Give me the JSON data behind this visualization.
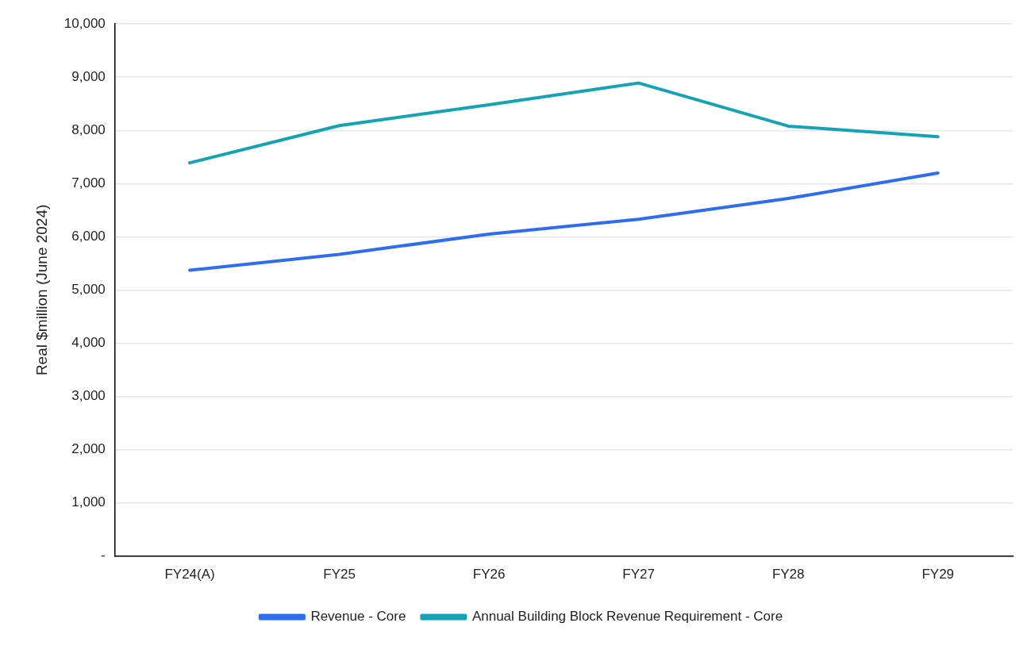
{
  "chart_data": {
    "type": "line",
    "ylabel": "Real $million (June 2024)",
    "categories": [
      "FY24(A)",
      "FY25",
      "FY26",
      "FY27",
      "FY28",
      "FY29"
    ],
    "series": [
      {
        "name": "Revenue - Core",
        "color": "#2e6cf2",
        "values": [
          5370,
          5670,
          6050,
          6330,
          6720,
          7200
        ]
      },
      {
        "name": "Annual Building Block Revenue Requirement - Core",
        "color": "#14a3b3",
        "values": [
          7390,
          8090,
          8480,
          8890,
          8080,
          7880
        ]
      }
    ],
    "ylim": [
      0,
      10000
    ],
    "yticks": [
      {
        "value": 0,
        "label": "-"
      },
      {
        "value": 1000,
        "label": "1,000"
      },
      {
        "value": 2000,
        "label": "2,000"
      },
      {
        "value": 3000,
        "label": "3,000"
      },
      {
        "value": 4000,
        "label": "4,000"
      },
      {
        "value": 5000,
        "label": "5,000"
      },
      {
        "value": 6000,
        "label": "6,000"
      },
      {
        "value": 7000,
        "label": "7,000"
      },
      {
        "value": 8000,
        "label": "8,000"
      },
      {
        "value": 9000,
        "label": "9,000"
      },
      {
        "value": 10000,
        "label": "10,000"
      }
    ],
    "grid": "y",
    "legend": "bottom",
    "marker": "none",
    "line_style": "solid"
  }
}
